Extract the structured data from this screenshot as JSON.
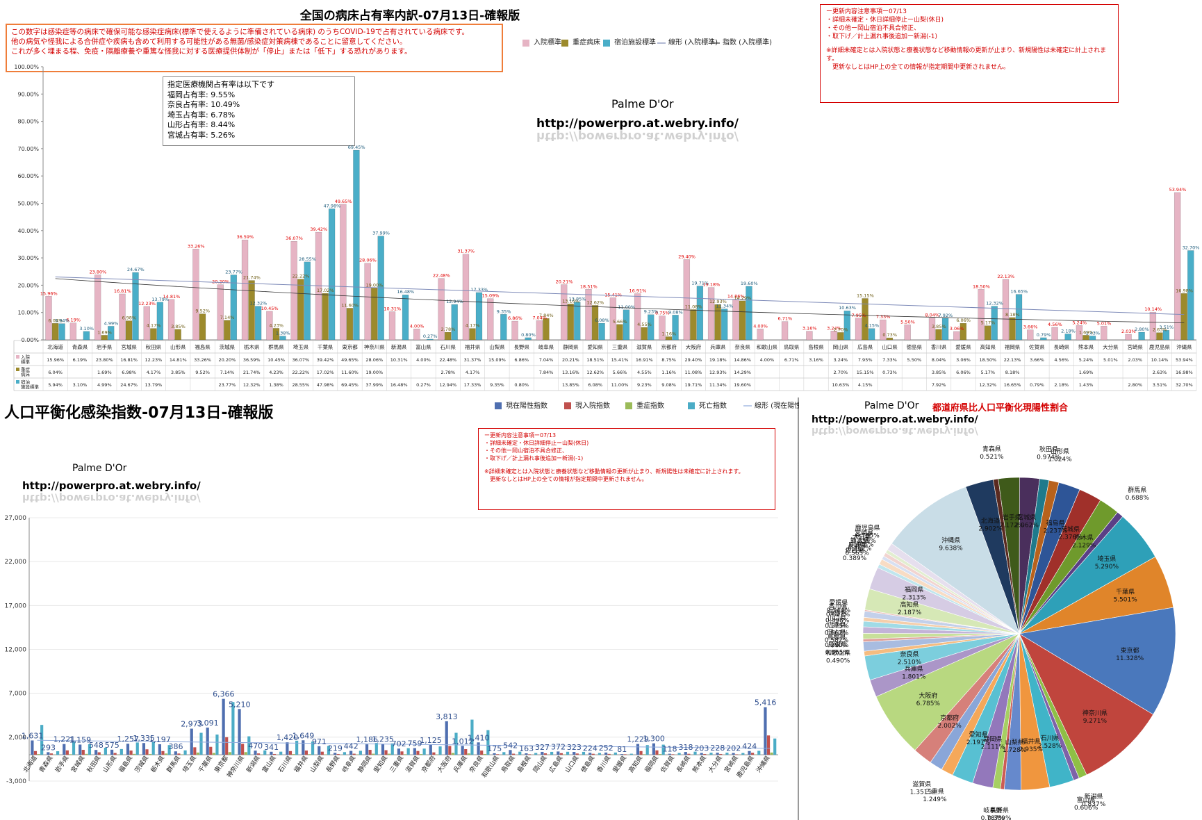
{
  "top": {
    "title": "全国の病床占有率内訳-07月13日-確報版",
    "notice": [
      "この数字は感染症等の病床で確保可能な感染症病床(標準で使えるように準備されている病床) のうちCOVID-19で占有されている病床です。",
      "他の病気や怪我による合併症や疾病も含めて利用する可能性がある無菌/感染症対策病棟であることに留意してください。",
      "これが多く埋まる程、免疫・隔離療養や重篤な怪我に対する医療提供体制が「停止」または「低下」する恐れがあります。"
    ],
    "update": [
      "ー更新内容注意事項ー07/13",
      "・詳細未確定・休日詳細停止ー山梨(休日)",
      "・その他ー岡山宿泊不具合修正、",
      "・取下げ／計上漏れ事後追加ー新潟(-1)",
      "",
      "※詳細未確定とは入院状態と療養状態など移動情報の更新が止まり、新規陽性は未確定に計上されま",
      "す。",
      "　更新なしとはHP上の全ての情報が指定期間中更新されません。"
    ],
    "rates": [
      "指定医療機関占有率は以下です",
      "福岡占有率: 9.55%",
      "奈良占有率: 10.49%",
      "埼玉占有率: 6.78%",
      "山形占有率: 8.44%",
      "宮城占有率: 5.26%"
    ],
    "watermark_name": "Palme D'Or",
    "watermark_url": "http://powerpro.at.webry.info/"
  },
  "bottom": {
    "title": "人口平衡化感染指数-07月13日-確報版",
    "update": [
      "ー更新内容注意事項ー07/13",
      "・詳細未確定・休日詳細停止ー山梨(休日)",
      "・その他ー岡山宿泊不具合修正、",
      "・取下げ／計上漏れ事後追加ー新潟(-1)",
      "",
      "※詳細未確定とは入院状態と療養状態など移動情報の更新が止まり、新規陽性は未確定に計上されます。",
      "　更新なしとはHP上の全ての情報が指定期間中更新されません。"
    ],
    "watermark_name": "Palme D'Or",
    "watermark_url": "http://powerpro.at.webry.info/"
  },
  "pie": {
    "watermark_name": "Palme D'Or",
    "title": "都道府県比人口平衡化現陽性割合",
    "watermark_url": "http://powerpro.at.webry.info/"
  },
  "chart_data": [
    {
      "type": "bar",
      "title": "全国の病床占有率内訳-07月13日-確報版",
      "categories": [
        "北海道",
        "青森県",
        "岩手県",
        "宮城県",
        "秋田県",
        "山形県",
        "福島県",
        "茨城県",
        "栃木県",
        "群馬県",
        "埼玉県",
        "千葉県",
        "東京都",
        "神奈川県",
        "新潟県",
        "富山県",
        "石川県",
        "福井県",
        "山梨県",
        "長野県",
        "岐阜県",
        "静岡県",
        "愛知県",
        "三重県",
        "滋賀県",
        "京都府",
        "大阪府",
        "兵庫県",
        "奈良県",
        "和歌山県",
        "鳥取県",
        "島根県",
        "岡山県",
        "広島県",
        "山口県",
        "徳島県",
        "香川県",
        "愛媛県",
        "高知県",
        "福岡県",
        "佐賀県",
        "長崎県",
        "熊本県",
        "大分県",
        "宮崎県",
        "鹿児島県",
        "沖縄県"
      ],
      "ylim": [
        0,
        100
      ],
      "yticks": [
        "0.00%",
        "10.00%",
        "20.00%",
        "30.00%",
        "40.00%",
        "50.00%",
        "60.00%",
        "70.00%",
        "80.00%",
        "90.00%",
        "100.00%"
      ],
      "legend_position": "top",
      "series": [
        {
          "name": "入院標準",
          "color": "#e6b4c4",
          "values": [
            15.96,
            6.19,
            23.8,
            16.81,
            12.23,
            14.81,
            33.26,
            20.2,
            36.59,
            10.45,
            36.07,
            39.42,
            49.65,
            28.06,
            10.31,
            4.0,
            22.48,
            31.37,
            15.09,
            6.86,
            7.04,
            20.21,
            18.51,
            15.41,
            16.91,
            8.75,
            29.4,
            19.18,
            14.86,
            4.0,
            6.71,
            3.16,
            3.24,
            7.95,
            7.33,
            5.5,
            8.04,
            3.06,
            18.5,
            22.13,
            3.66,
            4.56,
            5.24,
            5.01,
            2.03,
            10.14,
            53.94
          ],
          "labels": [
            "15.96%",
            "6.19%",
            "23.80%",
            "16.81%",
            "12.23%",
            "14.81%",
            "33.26%",
            "20.20%",
            "36.59%",
            "10.45%",
            "36.07%",
            "39.42%",
            "49.65%",
            "28.06%",
            "10.31%",
            "4.00%",
            "22.48%",
            "31.37%",
            "15.09%",
            "6.86%",
            "7.04%",
            "20.21%",
            "18.51%",
            "15.41%",
            "16.91%",
            "8.75%",
            "29.40%",
            "19.18%",
            "14.86%",
            "4.00%",
            "6.71%",
            "3.16%",
            "3.24%",
            "7.95%",
            "7.33%",
            "5.50%",
            "8.04%",
            "3.06%",
            "18.50%",
            "22.13%",
            "3.66%",
            "4.56%",
            "5.24%",
            "5.01%",
            "2.03%",
            "10.14%",
            "53.94%"
          ]
        },
        {
          "name": "重症病床",
          "color": "#9c8a2c",
          "values": [
            6.04,
            0,
            1.69,
            6.98,
            4.17,
            3.85,
            9.52,
            7.14,
            21.74,
            4.23,
            22.22,
            17.02,
            11.6,
            19.0,
            0,
            0,
            2.78,
            4.17,
            0,
            0,
            7.84,
            13.16,
            12.62,
            5.66,
            4.55,
            1.16,
            11.08,
            12.93,
            14.29,
            0,
            0,
            0,
            2.7,
            15.15,
            0.73,
            0,
            3.85,
            6.06,
            5.17,
            8.18,
            0,
            0,
            1.69,
            0,
            0,
            2.63,
            16.98
          ],
          "labels": [
            "6.04%",
            "",
            "1.69%",
            "6.98%",
            "4.17%",
            "3.85%",
            "9.52%",
            "7.14%",
            "21.74%",
            "4.23%",
            "22.22%",
            "17.02%",
            "11.60%",
            "19.00%",
            "",
            "",
            "2.78%",
            "4.17%",
            "",
            "",
            "7.84%",
            "13.16%",
            "12.62%",
            "5.66%",
            "4.55%",
            "1.16%",
            "11.08%",
            "12.93%",
            "14.29%",
            "",
            "",
            "",
            "2.70%",
            "15.15%",
            "0.73%",
            "",
            "3.85%",
            "6.06%",
            "5.17%",
            "8.18%",
            "",
            "",
            "1.69%",
            "",
            "",
            "2.63%",
            "16.98%"
          ]
        },
        {
          "name": "宿泊施設標準",
          "color": "#4aaec8",
          "values": [
            5.94,
            3.1,
            4.99,
            24.67,
            13.79,
            0,
            0,
            23.77,
            12.32,
            1.38,
            28.55,
            47.98,
            69.45,
            37.99,
            16.48,
            0.27,
            12.94,
            17.33,
            9.35,
            0.8,
            0,
            13.85,
            6.08,
            11.0,
            9.23,
            9.08,
            19.71,
            11.34,
            19.6,
            0,
            0,
            0,
            10.63,
            4.15,
            0,
            0,
            7.92,
            0,
            12.32,
            16.65,
            0.79,
            2.18,
            1.43,
            0,
            2.8,
            3.51,
            32.7
          ],
          "labels": [
            "5.94%",
            "3.10%",
            "4.99%",
            "24.67%",
            "13.79%",
            "",
            "",
            "23.77%",
            "12.32%",
            "1.38%",
            "28.55%",
            "47.98%",
            "69.45%",
            "37.99%",
            "16.48%",
            "0.27%",
            "12.94%",
            "17.33%",
            "9.35%",
            "0.80%",
            "",
            "13.85%",
            "6.08%",
            "11.00%",
            "9.23%",
            "9.08%",
            "19.71%",
            "11.34%",
            "19.60%",
            "",
            "",
            "",
            "10.63%",
            "4.15%",
            "",
            "",
            "7.92%",
            "",
            "12.32%",
            "16.65%",
            "0.79%",
            "2.18%",
            "1.43%",
            "",
            "2.80%",
            "3.51%",
            "32.70%"
          ]
        },
        {
          "name": "線形 (入院標準)",
          "type": "line",
          "color": "#7d8ab8"
        },
        {
          "name": "指数 (入院標準)",
          "type": "line",
          "color": "#333333"
        }
      ]
    },
    {
      "type": "bar",
      "title": "人口平衡化感染指数-07月13日-確報版",
      "categories": [
        "北海道",
        "青森県",
        "岩手県",
        "宮城県",
        "秋田県",
        "山形県",
        "福島県",
        "茨城県",
        "栃木県",
        "群馬県",
        "埼玉県",
        "千葉県",
        "東京都",
        "神奈川県",
        "新潟県",
        "富山県",
        "石川県",
        "福井県",
        "山梨県",
        "長野県",
        "岐阜県",
        "静岡県",
        "愛知県",
        "三重県",
        "滋賀県",
        "京都府",
        "大阪府",
        "兵庫県",
        "奈良県",
        "和歌山県",
        "鳥取県",
        "島根県",
        "岡山県",
        "広島県",
        "山口県",
        "徳島県",
        "香川県",
        "愛媛県",
        "高知県",
        "福岡県",
        "佐賀県",
        "長崎県",
        "熊本県",
        "大分県",
        "宮崎県",
        "鹿児島県",
        "沖縄県"
      ],
      "ylim": [
        -3000,
        27000
      ],
      "yticks": [
        "-3,000",
        "2,000",
        "7,000",
        "12,000",
        "17,000",
        "22,000",
        "27,000"
      ],
      "legend_position": "top",
      "series": [
        {
          "name": "現在陽性指数",
          "color": "#4f6fb0",
          "values": [
            1631,
            293,
            1221,
            1159,
            548,
            575,
            1257,
            1335,
            1197,
            386,
            2973,
            3091,
            6366,
            5210,
            470,
            341,
            1420,
            1649,
            971,
            219,
            442,
            1186,
            1235,
            702,
            759,
            1125,
            3813,
            1012,
            1410,
            175,
            542,
            163,
            327,
            372,
            323,
            224,
            252,
            81,
            1229,
            1300,
            118,
            318,
            203,
            228,
            202,
            424,
            5416
          ],
          "labels": [
            "1,631",
            "293",
            "1,221",
            "1,159",
            "548",
            "575",
            "1,257",
            "1,335",
            "1,197",
            "386",
            "2,973",
            "3,091",
            "6,366",
            "5,210",
            "470",
            "341",
            "1,420",
            "1,649",
            "971",
            "219",
            "442",
            "1,186",
            "1,235",
            "702",
            "759",
            "1,125",
            "3,813",
            "1,012",
            "1,410",
            "175",
            "542",
            "163",
            "327",
            "372",
            "323",
            "224",
            "252",
            "81",
            "1,229",
            "1,300",
            "118",
            "318",
            "203",
            "228",
            "202",
            "424",
            "5,416"
          ]
        },
        {
          "name": "現入院指数",
          "color": "#c0504d",
          "values": [
            420,
            150,
            500,
            560,
            280,
            200,
            480,
            620,
            420,
            140,
            850,
            900,
            2000,
            1250,
            150,
            90,
            420,
            480,
            350,
            90,
            120,
            560,
            520,
            380,
            430,
            270,
            1000,
            640,
            480,
            70,
            120,
            60,
            160,
            180,
            140,
            110,
            100,
            60,
            420,
            500,
            60,
            110,
            90,
            90,
            50,
            220,
            2200
          ]
        },
        {
          "name": "重症指数",
          "color": "#9bbb59",
          "values": [
            80,
            20,
            60,
            100,
            40,
            30,
            100,
            90,
            140,
            40,
            250,
            200,
            300,
            300,
            20,
            10,
            80,
            70,
            40,
            10,
            40,
            120,
            120,
            60,
            80,
            40,
            200,
            150,
            90,
            10,
            10,
            10,
            20,
            40,
            20,
            10,
            20,
            10,
            60,
            80,
            10,
            10,
            20,
            10,
            10,
            30,
            250
          ]
        },
        {
          "name": "死亡指数",
          "color": "#4bacc6",
          "values": [
            3400,
            400,
            1500,
            1200,
            800,
            650,
            1400,
            1500,
            1100,
            500,
            2500,
            2300,
            6000,
            2100,
            500,
            350,
            1600,
            1500,
            1000,
            300,
            450,
            1350,
            1300,
            750,
            700,
            950,
            2500,
            4000,
            2800,
            300,
            350,
            200,
            330,
            340,
            330,
            200,
            250,
            120,
            1100,
            1150,
            200,
            350,
            230,
            230,
            200,
            450,
            1850
          ]
        },
        {
          "name": "線形 (現在陽性指数)",
          "type": "line",
          "color": "#8faadc"
        }
      ]
    },
    {
      "type": "pie",
      "title": "都道府県比人口平衡化現陽性割合",
      "categories": [
        "北海道",
        "青森県",
        "岩手県",
        "宮城県",
        "秋田県",
        "山形県",
        "福島県",
        "茨城県",
        "栃木県",
        "群馬県",
        "埼玉県",
        "千葉県",
        "東京都",
        "神奈川県",
        "新潟県",
        "富山県",
        "石川県",
        "福井県",
        "山梨県",
        "長野県",
        "岐阜県",
        "静岡県",
        "愛知県",
        "三重県",
        "滋賀県",
        "京都府",
        "大阪府",
        "兵庫県",
        "奈良県",
        "和歌山県",
        "鳥取県",
        "島根県",
        "岡山県",
        "広島県",
        "山口県",
        "徳島県",
        "香川県",
        "愛媛県",
        "高知県",
        "福岡県",
        "佐賀県",
        "長崎県",
        "熊本県",
        "大分県",
        "宮崎県",
        "鹿児島県",
        "沖縄県"
      ],
      "values": [
        2.902,
        0.521,
        2.172,
        2.062,
        0.974,
        1.024,
        2.237,
        2.376,
        2.129,
        0.688,
        5.29,
        5.501,
        11.328,
        9.271,
        0.837,
        0.606,
        2.528,
        2.935,
        1.728,
        0.389,
        0.787,
        2.111,
        2.197,
        1.249,
        1.351,
        2.002,
        6.785,
        1.801,
        2.51,
        0.49,
        0.965,
        0.29,
        0.582,
        0.662,
        0.575,
        0.398,
        0.627,
        0.144,
        2.187,
        2.313,
        0.389,
        0.565,
        0.362,
        0.406,
        0.359,
        0.755,
        9.638
      ],
      "labels": [
        "2.902%",
        "0.521%",
        "2.172%",
        "2.062%",
        "0.974%",
        "1.024%",
        "2.237%",
        "2.376%",
        "2.129%",
        "0.688%",
        "5.290%",
        "5.501%",
        "11.328%",
        "9.271%",
        "0.837%",
        "0.606%",
        "2.528%",
        "2.935%",
        "1.728%",
        "0.389%",
        "0.787%",
        "2.111%",
        "2.197%",
        "1.249%",
        "1.351%",
        "2.002%",
        "6.785%",
        "1.801%",
        "2.510%",
        "0.490%",
        "0.965%",
        "0.290%",
        "0.582%",
        "0.662%",
        "0.575%",
        "0.398%",
        "0.627%",
        "0.144%",
        "2.187%",
        "2.313%",
        "0.389%",
        "0.565%",
        "0.362%",
        "0.406%",
        "0.359%",
        "0.755%",
        "9.638%"
      ],
      "colors": [
        "#1f3a5f",
        "#5a2a20",
        "#3f5a1a",
        "#4a2f5c",
        "#1f7a8c",
        "#b8621c",
        "#2e5597",
        "#a0302a",
        "#6f9a2c",
        "#5a3f86",
        "#2ea0b8",
        "#e0852a",
        "#4a78bc",
        "#c0453d",
        "#8fbf45",
        "#7e62a8",
        "#40b4c8",
        "#f0963e",
        "#6689cc",
        "#cc5c55",
        "#a6cf62",
        "#9378bb",
        "#58c0d2",
        "#f5a85a",
        "#8aa6d8",
        "#d6807a",
        "#b8d880",
        "#ab96c8",
        "#7ccedd",
        "#f5bc80",
        "#a8bce0",
        "#e0a09a",
        "#c8e09a",
        "#c3b3d8",
        "#a0dbe6",
        "#f5ceaa",
        "#c3d0ea",
        "#ebbcb8",
        "#d6e8b6",
        "#d6cce4",
        "#c0e6ee",
        "#f8dcc4",
        "#d8e0f2",
        "#f2d4d0",
        "#e2eed0",
        "#e6dfee",
        "#c9dde7"
      ]
    }
  ]
}
